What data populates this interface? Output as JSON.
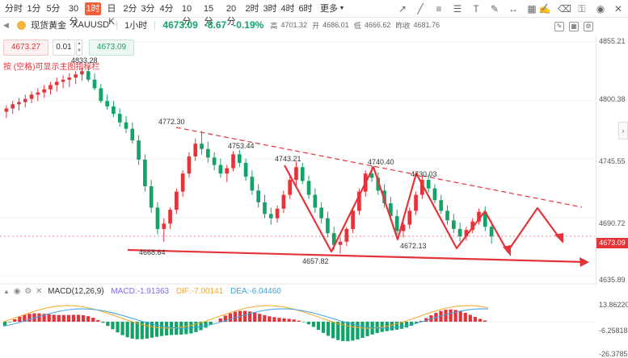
{
  "toolbar": {
    "timeframes": [
      "分时",
      "1分",
      "5分",
      "30分",
      "1时",
      "日K",
      "2分",
      "3分",
      "4分",
      "10分",
      "15分",
      "20分",
      "2时",
      "3时",
      "4时",
      "6时"
    ],
    "active": "1时",
    "more_label": "更多",
    "tools_right": [
      "pen-icon",
      "line-icon",
      "hlines-icon",
      "fib-icon",
      "text-icon",
      "brush-icon",
      "ruler-icon",
      "grid-icon",
      "edit-icon",
      "eraser-icon",
      "lock-icon",
      "eye-icon",
      "trash-icon"
    ]
  },
  "symbol": {
    "name": "现货黄金",
    "code": "XAUUSD",
    "interval": "1小时",
    "last": "4673.09",
    "change": "-8.67",
    "change_pct": "-0.19%",
    "high_label": "高",
    "high": "4701.32",
    "open_label": "开",
    "open": "4686.01",
    "low_label": "低",
    "low": "4666.62",
    "prev_close_label": "昨收",
    "prev_close": "4681.76"
  },
  "trade": {
    "bid": "4673.27",
    "lot": "0.01",
    "ask": "4673.09",
    "hint": "按 (空格)可显示主图指标栏"
  },
  "price_axis": {
    "ticks": [
      "4855.21",
      "4800.38",
      "4745.55",
      "4690.72",
      "4635.89"
    ],
    "current": "4673.09"
  },
  "macd": {
    "title": "MACD(12,26,9)",
    "macd_label": "MACD:",
    "macd_value": "-1.91363",
    "dif_label": "DIF:",
    "dif_value": "-7.00141",
    "dea_label": "DEA:",
    "dea_value": "-6.04460",
    "axis_ticks": [
      "13.86220",
      "-6.25818",
      "-26.37852"
    ],
    "colors": {
      "macd": "#7a6cf0",
      "dif": "#f5a623",
      "dea": "#3aa3e3"
    }
  },
  "chart_data": {
    "type": "candlestick",
    "ylim": [
      4630,
      4860
    ],
    "annotations": [
      {
        "text": "4833.28",
        "price": 4833.28
      },
      {
        "text": "4772.30",
        "price": 4772.3
      },
      {
        "text": "4753.44",
        "price": 4753.44
      },
      {
        "text": "4743.21",
        "price": 4743.21
      },
      {
        "text": "4740.40",
        "price": 4740.4
      },
      {
        "text": "4730.03",
        "price": 4730.03
      },
      {
        "text": "4672.13",
        "price": 4672.13
      },
      {
        "text": "4668.64",
        "price": 4668.64
      },
      {
        "text": "4657.82",
        "price": 4657.82
      }
    ],
    "colors": {
      "up": "#e5333a",
      "down": "#12a368",
      "trend": "#e5333a"
    },
    "candles_approx": [
      [
        4790,
        4796,
        4784,
        4793
      ],
      [
        4793,
        4800,
        4788,
        4797
      ],
      [
        4797,
        4803,
        4791,
        4799
      ],
      [
        4799,
        4806,
        4794,
        4802
      ],
      [
        4802,
        4809,
        4798,
        4806
      ],
      [
        4806,
        4812,
        4800,
        4808
      ],
      [
        4808,
        4815,
        4803,
        4811
      ],
      [
        4811,
        4818,
        4806,
        4815
      ],
      [
        4815,
        4822,
        4809,
        4818
      ],
      [
        4818,
        4824,
        4812,
        4820
      ],
      [
        4820,
        4826,
        4813,
        4822
      ],
      [
        4822,
        4828,
        4816,
        4825
      ],
      [
        4825,
        4831,
        4819,
        4828
      ],
      [
        4828,
        4833,
        4818,
        4820
      ],
      [
        4820,
        4826,
        4810,
        4812
      ],
      [
        4812,
        4816,
        4798,
        4800
      ],
      [
        4800,
        4806,
        4792,
        4795
      ],
      [
        4795,
        4800,
        4785,
        4788
      ],
      [
        4788,
        4793,
        4776,
        4780
      ],
      [
        4780,
        4786,
        4770,
        4774
      ],
      [
        4774,
        4780,
        4760,
        4763
      ],
      [
        4763,
        4768,
        4740,
        4745
      ],
      [
        4745,
        4750,
        4715,
        4720
      ],
      [
        4720,
        4726,
        4695,
        4700
      ],
      [
        4700,
        4705,
        4675,
        4680
      ],
      [
        4680,
        4690,
        4668,
        4685
      ],
      [
        4685,
        4700,
        4680,
        4698
      ],
      [
        4698,
        4718,
        4694,
        4715
      ],
      [
        4715,
        4735,
        4710,
        4732
      ],
      [
        4732,
        4752,
        4728,
        4748
      ],
      [
        4748,
        4765,
        4744,
        4760
      ],
      [
        4760,
        4772,
        4750,
        4755
      ],
      [
        4755,
        4762,
        4742,
        4747
      ],
      [
        4747,
        4752,
        4735,
        4740
      ],
      [
        4740,
        4746,
        4728,
        4732
      ],
      [
        4732,
        4740,
        4724,
        4737
      ],
      [
        4737,
        4753,
        4734,
        4750
      ],
      [
        4750,
        4754,
        4738,
        4742
      ],
      [
        4742,
        4746,
        4725,
        4729
      ],
      [
        4729,
        4735,
        4712,
        4716
      ],
      [
        4716,
        4722,
        4700,
        4705
      ],
      [
        4705,
        4712,
        4690,
        4694
      ],
      [
        4694,
        4700,
        4684,
        4690
      ],
      [
        4690,
        4702,
        4686,
        4699
      ],
      [
        4699,
        4716,
        4695,
        4712
      ],
      [
        4712,
        4730,
        4708,
        4726
      ],
      [
        4726,
        4743,
        4720,
        4738
      ],
      [
        4738,
        4742,
        4722,
        4725
      ],
      [
        4725,
        4730,
        4708,
        4712
      ],
      [
        4712,
        4718,
        4695,
        4700
      ],
      [
        4700,
        4705,
        4685,
        4690
      ],
      [
        4690,
        4696,
        4672,
        4676
      ],
      [
        4676,
        4682,
        4660,
        4665
      ],
      [
        4665,
        4672,
        4657,
        4668
      ],
      [
        4668,
        4682,
        4664,
        4680
      ],
      [
        4680,
        4700,
        4676,
        4697
      ],
      [
        4697,
        4718,
        4693,
        4715
      ],
      [
        4715,
        4735,
        4710,
        4732
      ],
      [
        4732,
        4740,
        4724,
        4728
      ],
      [
        4728,
        4733,
        4712,
        4716
      ],
      [
        4716,
        4722,
        4700,
        4704
      ],
      [
        4704,
        4710,
        4688,
        4692
      ],
      [
        4692,
        4698,
        4674,
        4678
      ],
      [
        4678,
        4686,
        4672,
        4684
      ],
      [
        4684,
        4700,
        4680,
        4697
      ],
      [
        4697,
        4715,
        4693,
        4712
      ],
      [
        4712,
        4730,
        4708,
        4726
      ],
      [
        4726,
        4731,
        4714,
        4718
      ],
      [
        4718,
        4722,
        4704,
        4707
      ],
      [
        4707,
        4712,
        4694,
        4697
      ],
      [
        4697,
        4702,
        4684,
        4688
      ],
      [
        4688,
        4694,
        4676,
        4680
      ],
      [
        4680,
        4686,
        4668,
        4673
      ],
      [
        4673,
        4682,
        4669,
        4679
      ],
      [
        4679,
        4690,
        4676,
        4687
      ],
      [
        4687,
        4699,
        4684,
        4696
      ],
      [
        4696,
        4701,
        4678,
        4682
      ],
      [
        4682,
        4688,
        4666,
        4673
      ]
    ]
  }
}
